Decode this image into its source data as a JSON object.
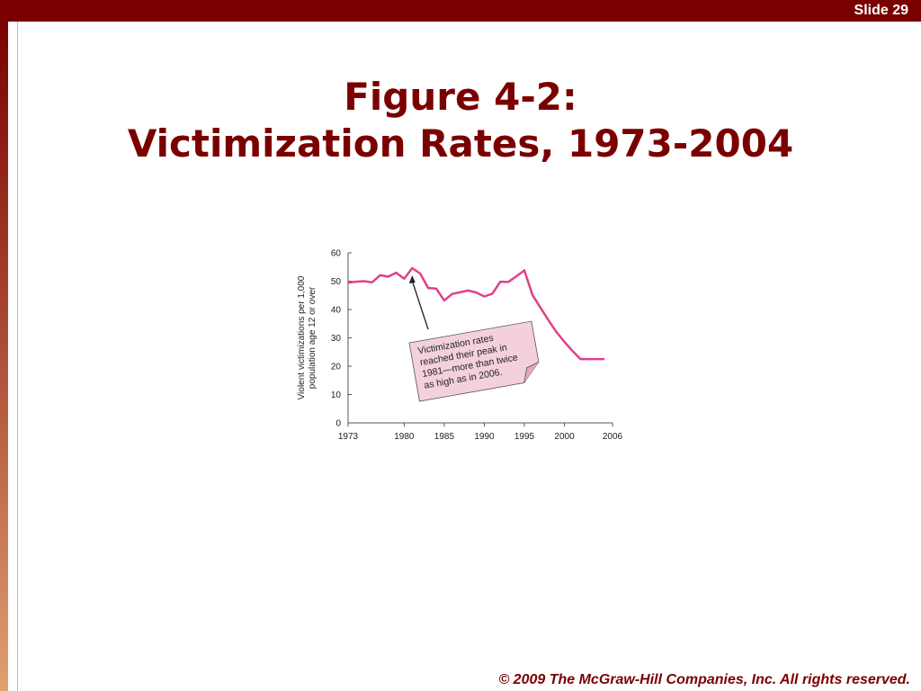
{
  "slide": {
    "number_label": "Slide 29"
  },
  "title": {
    "line1": "Figure 4-2:",
    "line2": "Victimization Rates, 1973-2004"
  },
  "footer": {
    "copyright": "© 2009 The McGraw-Hill Companies, Inc. All rights reserved."
  },
  "colors": {
    "brand": "#7a0000",
    "series": "#e0408a",
    "note_fill": "#f4d0de"
  },
  "chart_data": {
    "type": "line",
    "xlabel": "",
    "ylabel_lines": [
      "Violent victimizations per 1,000",
      "population age 12 or over"
    ],
    "xlim": [
      1973,
      2006
    ],
    "ylim": [
      0,
      60
    ],
    "x_ticks": [
      1973,
      1980,
      1985,
      1990,
      1995,
      2000,
      2006
    ],
    "y_ticks": [
      0,
      10,
      20,
      30,
      40,
      50,
      60
    ],
    "grid": false,
    "series": [
      {
        "x": [
          1973,
          1974,
          1975,
          1976,
          1977,
          1978,
          1979,
          1980,
          1981,
          1982,
          1983,
          1984,
          1985,
          1986,
          1987,
          1988,
          1989,
          1990,
          1991,
          1992,
          1993,
          1994,
          1995,
          1996,
          1997,
          1998,
          1999,
          2000,
          2001,
          2002,
          2003,
          2004,
          2005
        ],
        "values": [
          49.5,
          49.8,
          50.0,
          49.6,
          52.1,
          51.6,
          53.0,
          50.9,
          54.6,
          52.7,
          47.6,
          47.4,
          43.2,
          45.5,
          46.1,
          46.7,
          46.0,
          44.6,
          45.6,
          49.8,
          49.7,
          51.7,
          53.8,
          45.2,
          40.7,
          36.3,
          32.1,
          28.6,
          25.4,
          22.5,
          22.5,
          22.5,
          22.5
        ]
      }
    ],
    "annotation": {
      "lines": [
        "Victimization rates",
        "reached their peak in",
        "1981—more than twice",
        "as high as in 2006."
      ],
      "points_to_x": 1981
    }
  }
}
